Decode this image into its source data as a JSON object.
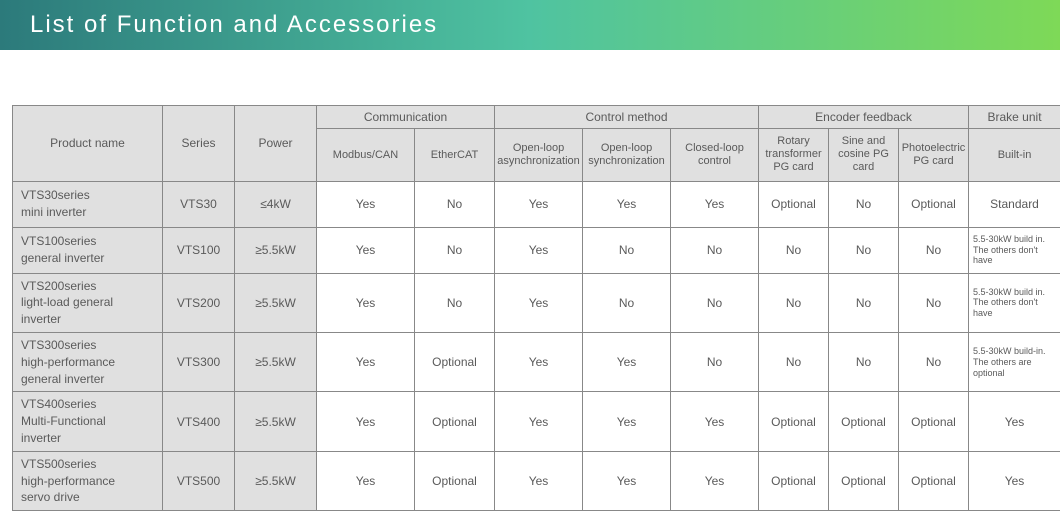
{
  "title": "List of Function and Accessories",
  "header_gradient": {
    "from": "#2c7a7b",
    "mid": "#4fc3a1",
    "to": "#7ed957"
  },
  "table": {
    "top_headers": {
      "product": "Product name",
      "series": "Series",
      "power": "Power",
      "communication": "Communication",
      "control": "Control method",
      "encoder": "Encoder feedback",
      "brake": "Brake unit"
    },
    "sub_headers": {
      "modbus": "Modbus/CAN",
      "ethercat": "EtherCAT",
      "open_async": "Open-loop asynchronization",
      "open_sync": "Open-loop synchronization",
      "closed": "Closed-loop control",
      "rotary": "Rotary transformer PG card",
      "sincos": "Sine and cosine PG card",
      "photo": "Photoelectric PG card",
      "builtin": "Built-in"
    },
    "rows": [
      {
        "product": "VTS30series\nmini inverter",
        "series": "VTS30",
        "power": "≤4kW",
        "modbus": "Yes",
        "ethercat": "No",
        "open_async": "Yes",
        "open_sync": "Yes",
        "closed": "Yes",
        "rotary": "Optional",
        "sincos": "No",
        "photo": "Optional",
        "brake": "Standard"
      },
      {
        "product": "VTS100series\ngeneral inverter",
        "series": "VTS100",
        "power": "≥5.5kW",
        "modbus": "Yes",
        "ethercat": "No",
        "open_async": "Yes",
        "open_sync": "No",
        "closed": "No",
        "rotary": "No",
        "sincos": "No",
        "photo": "No",
        "brake": "5.5-30kW build in.\nThe others don't have"
      },
      {
        "product": "VTS200series\nlight-load general\ninverter",
        "series": "VTS200",
        "power": "≥5.5kW",
        "modbus": "Yes",
        "ethercat": "No",
        "open_async": "Yes",
        "open_sync": "No",
        "closed": "No",
        "rotary": "No",
        "sincos": "No",
        "photo": "No",
        "brake": "5.5-30kW build in.\nThe others don't have"
      },
      {
        "product": "VTS300series\nhigh-performance\ngeneral inverter",
        "series": "VTS300",
        "power": "≥5.5kW",
        "modbus": "Yes",
        "ethercat": "Optional",
        "open_async": "Yes",
        "open_sync": "Yes",
        "closed": "No",
        "rotary": "No",
        "sincos": "No",
        "photo": "No",
        "brake": "5.5-30kW build-in.\nThe others are optional"
      },
      {
        "product": "VTS400series\nMulti-Functional\ninverter",
        "series": "VTS400",
        "power": "≥5.5kW",
        "modbus": "Yes",
        "ethercat": "Optional",
        "open_async": "Yes",
        "open_sync": "Yes",
        "closed": "Yes",
        "rotary": "Optional",
        "sincos": "Optional",
        "photo": "Optional",
        "brake": "Yes"
      },
      {
        "product": "VTS500series\nhigh-performance\nservo drive",
        "series": "VTS500",
        "power": "≥5.5kW",
        "modbus": "Yes",
        "ethercat": "Optional",
        "open_async": "Yes",
        "open_sync": "Yes",
        "closed": "Yes",
        "rotary": "Optional",
        "sincos": "Optional",
        "photo": "Optional",
        "brake": "Yes"
      }
    ]
  }
}
